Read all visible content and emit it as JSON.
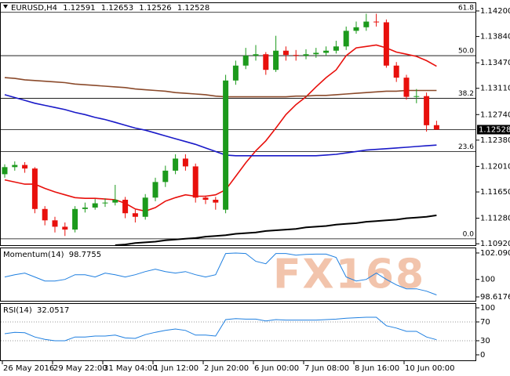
{
  "chart_data": [
    {
      "type": "candlestick",
      "title": "EURUSD,H4",
      "categories": [
        "26 May 2016",
        null,
        null,
        null,
        null,
        "29 May 22:00",
        null,
        null,
        null,
        null,
        "31 May 04:00",
        null,
        null,
        null,
        null,
        "1 Jun 12:00",
        null,
        null,
        null,
        null,
        "2 Jun 20:00",
        null,
        null,
        null,
        null,
        "6 Jun 00:00",
        null,
        null,
        null,
        null,
        "7 Jun 08:00",
        null,
        null,
        null,
        null,
        "8 Jun 16:00",
        null,
        null,
        null,
        null,
        "10 Jun 00:00",
        null,
        null,
        null
      ],
      "open": [
        1.119,
        1.12,
        1.1203,
        1.1198,
        1.1141,
        1.1125,
        1.1116,
        1.1112,
        1.1141,
        1.1143,
        1.1149,
        1.115,
        1.1154,
        1.1135,
        1.113,
        1.1157,
        1.1179,
        1.1195,
        1.1212,
        1.1201,
        1.1157,
        1.1154,
        1.114,
        1.1322,
        1.1343,
        1.1357,
        1.1359,
        1.1337,
        1.1364,
        1.1358,
        1.1357,
        1.1359,
        1.1361,
        1.1364,
        1.137,
        1.1392,
        1.1397,
        1.1405,
        1.1404,
        1.1343,
        1.1326,
        1.1299,
        1.13,
        1.12591
      ],
      "high": [
        1.1204,
        1.1208,
        1.1207,
        1.12,
        1.1145,
        1.113,
        1.1122,
        1.1145,
        1.115,
        1.1155,
        1.1156,
        1.1175,
        1.1158,
        1.114,
        1.1162,
        1.1185,
        1.1202,
        1.1218,
        1.1218,
        1.1205,
        1.116,
        1.1158,
        1.133,
        1.135,
        1.1368,
        1.1372,
        1.1362,
        1.1385,
        1.137,
        1.1365,
        1.1366,
        1.1368,
        1.137,
        1.1378,
        1.1398,
        1.1405,
        1.1416,
        1.1416,
        1.1408,
        1.1348,
        1.133,
        1.131,
        1.1305,
        1.12653
      ],
      "low": [
        1.1185,
        1.1195,
        1.1192,
        1.1135,
        1.1118,
        1.1108,
        1.1103,
        1.1108,
        1.1136,
        1.114,
        1.1144,
        1.1146,
        1.1128,
        1.1122,
        1.1126,
        1.1152,
        1.1172,
        1.119,
        1.1195,
        1.115,
        1.1148,
        1.114,
        1.1135,
        1.1316,
        1.1338,
        1.135,
        1.133,
        1.1334,
        1.135,
        1.135,
        1.1352,
        1.1354,
        1.1357,
        1.136,
        1.1365,
        1.1388,
        1.1392,
        1.1398,
        1.134,
        1.132,
        1.1295,
        1.129,
        1.125,
        1.12526
      ],
      "close": [
        1.12,
        1.1203,
        1.1198,
        1.1141,
        1.1125,
        1.1116,
        1.1112,
        1.1141,
        1.1143,
        1.1149,
        1.115,
        1.1154,
        1.1135,
        1.113,
        1.1157,
        1.1179,
        1.1195,
        1.1212,
        1.1201,
        1.1157,
        1.1154,
        1.115,
        1.1322,
        1.1343,
        1.1357,
        1.1359,
        1.1337,
        1.1364,
        1.1358,
        1.1357,
        1.1359,
        1.1361,
        1.1364,
        1.137,
        1.1392,
        1.1397,
        1.1405,
        1.1404,
        1.1343,
        1.1326,
        1.1299,
        1.13,
        1.1259,
        1.12528
      ],
      "up_color": "#1c9a1c",
      "down_color": "#e8100c",
      "series": [
        {
          "color": "#e8100c",
          "values": [
            1.1182,
            1.1179,
            1.1176,
            1.1176,
            1.117,
            1.1165,
            1.1161,
            1.1157,
            1.1156,
            1.1156,
            1.1155,
            1.1154,
            1.1149,
            1.1141,
            1.1138,
            1.1143,
            1.1152,
            1.1157,
            1.1161,
            1.1159,
            1.1159,
            1.1161,
            1.1168,
            1.1187,
            1.1206,
            1.1223,
            1.1237,
            1.1255,
            1.1274,
            1.1288,
            1.1299,
            1.1313,
            1.1326,
            1.1337,
            1.1357,
            1.1368,
            1.137,
            1.1372,
            1.1368,
            1.1362,
            1.1359,
            1.1356,
            1.135,
            1.1342
          ]
        },
        {
          "color": "#8b4a2b",
          "values": [
            1.1326,
            1.1325,
            1.1323,
            1.1322,
            1.1321,
            1.132,
            1.1319,
            1.1317,
            1.1316,
            1.1315,
            1.1314,
            1.1313,
            1.1312,
            1.131,
            1.1309,
            1.1308,
            1.1307,
            1.1305,
            1.1304,
            1.1303,
            1.1302,
            1.13,
            1.1299,
            1.1299,
            1.1299,
            1.1299,
            1.1299,
            1.1299,
            1.1299,
            1.13,
            1.13,
            1.1301,
            1.1301,
            1.1302,
            1.1303,
            1.1304,
            1.1305,
            1.1306,
            1.1307,
            1.1307,
            1.1308,
            1.1308,
            1.1308,
            1.1308
          ]
        },
        {
          "color": "#1a1ac8",
          "values": [
            1.1302,
            1.1298,
            1.1294,
            1.129,
            1.1287,
            1.1284,
            1.1281,
            1.1277,
            1.1274,
            1.127,
            1.1267,
            1.1263,
            1.1259,
            1.1255,
            1.1252,
            1.1248,
            1.1244,
            1.124,
            1.1236,
            1.1232,
            1.1227,
            1.1222,
            1.1217,
            1.1216,
            1.1216,
            1.1216,
            1.1216,
            1.1216,
            1.1216,
            1.1216,
            1.1216,
            1.1216,
            1.1217,
            1.1218,
            1.122,
            1.1222,
            1.1224,
            1.1225,
            1.1226,
            1.1227,
            1.1228,
            1.1229,
            1.123,
            1.1231
          ]
        },
        {
          "color": "#000000",
          "values": [
            null,
            null,
            null,
            null,
            null,
            null,
            null,
            null,
            null,
            null,
            null,
            1.109,
            1.1091,
            1.1093,
            1.1094,
            1.1095,
            1.1097,
            1.1098,
            1.1099,
            1.11,
            1.1102,
            1.1103,
            1.1104,
            1.1106,
            1.1107,
            1.1108,
            1.111,
            1.1111,
            1.1112,
            1.1113,
            1.1115,
            1.1116,
            1.1117,
            1.1119,
            1.112,
            1.1121,
            1.1123,
            1.1124,
            1.1125,
            1.1126,
            1.1128,
            1.1129,
            1.113,
            1.1132
          ]
        }
      ],
      "levels": [
        {
          "label": "61.8",
          "value": 1.1418
        },
        {
          "label": "50.0",
          "value": 1.1357
        },
        {
          "label": "38.2",
          "value": 1.1297
        },
        {
          "label": "23.6",
          "value": 1.1222
        },
        {
          "label": "0.0",
          "value": 1.1099
        }
      ],
      "ylim": [
        1.109,
        1.1431
      ],
      "yticks": [
        {
          "value": 1.142,
          "label": "1.14200"
        },
        {
          "value": 1.1384,
          "label": "1.13840"
        },
        {
          "value": 1.1347,
          "label": "1.13470"
        },
        {
          "value": 1.1311,
          "label": "1.13110"
        },
        {
          "value": 1.1274,
          "label": "1.12740"
        },
        {
          "value": 1.1238,
          "label": "1.12380"
        },
        {
          "value": 1.1201,
          "label": "1.12010"
        },
        {
          "value": 1.1165,
          "label": "1.11650"
        },
        {
          "value": 1.1128,
          "label": "1.11280"
        },
        {
          "value": 1.1092,
          "label": "1.10920"
        }
      ]
    },
    {
      "type": "line",
      "title": "Momentum(14)",
      "color": "#1e7fe0",
      "annotation": "FX168",
      "values": [
        100.19,
        100.37,
        100.5,
        100.19,
        99.88,
        99.88,
        100,
        100.37,
        100.37,
        100.19,
        100.5,
        100.37,
        100.19,
        100.37,
        100.62,
        100.81,
        100.62,
        100.5,
        100.62,
        100.37,
        100.19,
        100.37,
        102.05,
        102.0907,
        102.05,
        101.43,
        101.24,
        102.05,
        102.05,
        101.92,
        101.98,
        102,
        102,
        101.74,
        100.19,
        99.88,
        100,
        100.5,
        100,
        99.57,
        99.26,
        99.26,
        99.07,
        98.7755
      ],
      "ylim": [
        98.31,
        102.46
      ],
      "yticks": [
        102.0907,
        100,
        98.6176
      ]
    },
    {
      "type": "line",
      "title": "RSI(14)",
      "color": "#1e7fe0",
      "values": [
        45,
        48,
        47,
        38,
        33,
        30,
        30,
        38,
        38,
        40,
        40,
        42,
        36,
        35,
        43,
        48,
        52,
        55,
        52,
        42,
        42,
        40,
        75,
        77,
        76,
        76,
        72,
        75,
        74,
        74,
        74,
        74,
        75,
        76,
        78,
        79,
        80,
        80,
        62,
        57,
        50,
        50,
        38,
        32.0517
      ],
      "levels": [
        70,
        30
      ],
      "ylim": [
        -11.7,
        108.3
      ],
      "yticks": [
        100,
        70,
        30,
        0
      ]
    }
  ]
}
